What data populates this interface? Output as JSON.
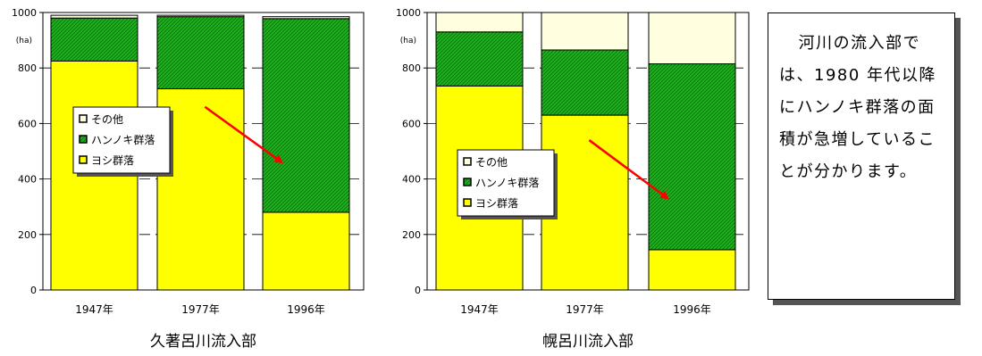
{
  "chart_data": [
    {
      "type": "bar",
      "stacked": true,
      "percent": false,
      "title": "久著呂川流入部",
      "ylabel": "(ha)",
      "ylim": [
        0,
        1000
      ],
      "yticks": [
        0,
        200,
        400,
        600,
        800,
        1000
      ],
      "categories": [
        "1947年",
        "1977年",
        "1996年"
      ],
      "series": [
        {
          "name": "ヨシ群落",
          "values": [
            825,
            725,
            280
          ],
          "color": "#ffff00"
        },
        {
          "name": "ハンノキ群落",
          "values": [
            155,
            260,
            698
          ],
          "color": "#22aa22"
        },
        {
          "name": "その他",
          "values": [
            10,
            5,
            7
          ],
          "color": "#ffffe0"
        }
      ],
      "legend": {
        "order": [
          "その他",
          "ハンノキ群落",
          "ヨシ群落"
        ],
        "placement": "left-middle"
      },
      "annotation": {
        "kind": "arrow",
        "color": "#ff0000",
        "from": {
          "category": "1977年",
          "value": 660
        },
        "to": {
          "category": "1996年",
          "value": 460
        }
      }
    },
    {
      "type": "bar",
      "stacked": true,
      "percent": false,
      "title": "幌呂川流入部",
      "ylabel": "(ha)",
      "ylim": [
        0,
        1000
      ],
      "yticks": [
        0,
        200,
        400,
        600,
        800,
        1000
      ],
      "categories": [
        "1947年",
        "1977年",
        "1996年"
      ],
      "series": [
        {
          "name": "ヨシ群落",
          "values": [
            735,
            630,
            145
          ],
          "color": "#ffff00"
        },
        {
          "name": "ハンノキ群落",
          "values": [
            195,
            235,
            670
          ],
          "color": "#22aa22"
        },
        {
          "name": "その他",
          "values": [
            70,
            135,
            185
          ],
          "color": "#ffffe0"
        }
      ],
      "legend": {
        "order": [
          "その他",
          "ハンノキ群落",
          "ヨシ群落"
        ],
        "placement": "left-lower"
      },
      "annotation": {
        "kind": "arrow",
        "color": "#ff0000",
        "from": {
          "category": "1977年",
          "value": 540
        },
        "to": {
          "category": "1996年",
          "value": 330
        }
      }
    }
  ],
  "note": {
    "text": "河川の流入部では、1980 年代以降にハンノキ群落の面積が急増していることが分かります。"
  }
}
